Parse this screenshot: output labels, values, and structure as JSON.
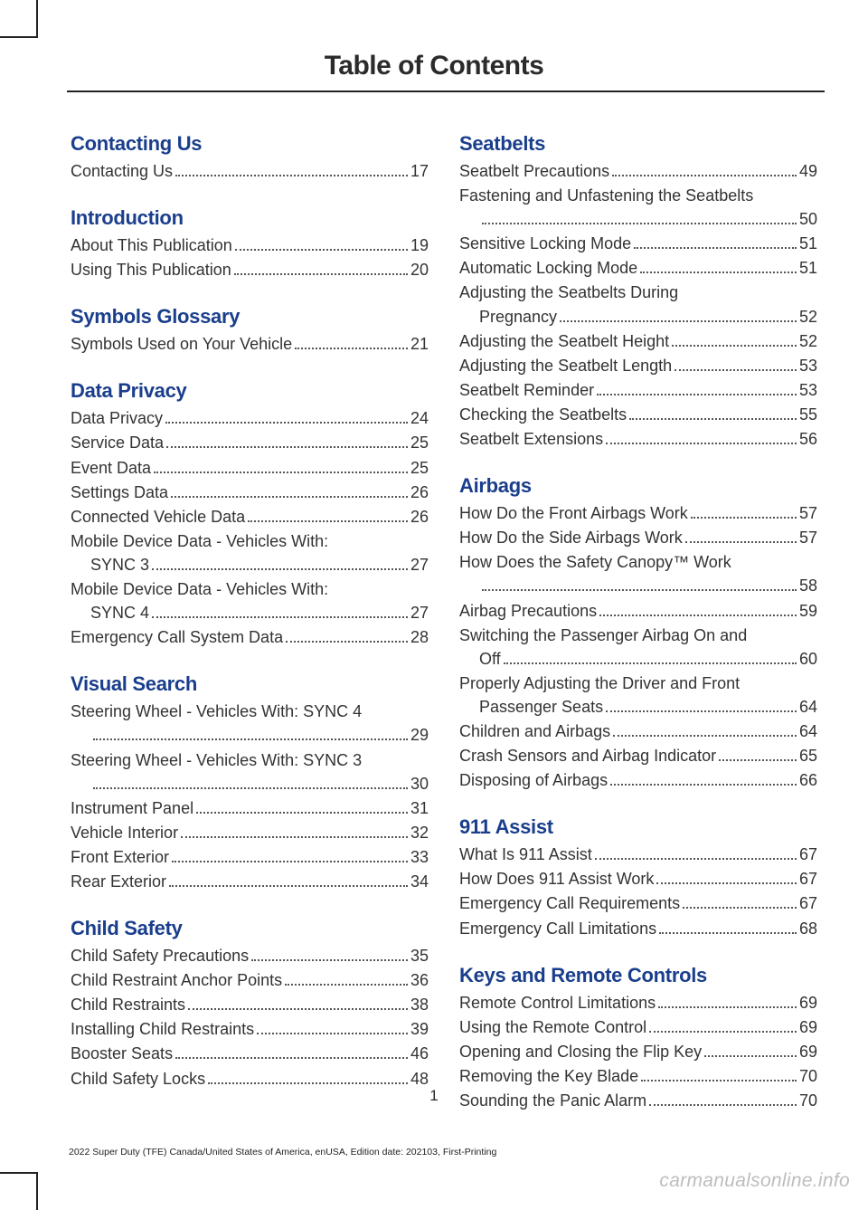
{
  "pageTitle": "Table of Contents",
  "pageNumber": "1",
  "footer": "2022 Super Duty (TFE) Canada/United States of America, enUSA, Edition date: 202103, First-Printing",
  "watermark": "carmanualsonline.info",
  "left": [
    {
      "head": "Contacting Us",
      "items": [
        {
          "label": "Contacting Us",
          "page": "17"
        }
      ]
    },
    {
      "head": "Introduction",
      "items": [
        {
          "label": "About This Publication",
          "page": "19"
        },
        {
          "label": "Using This Publication",
          "page": "20"
        }
      ]
    },
    {
      "head": "Symbols Glossary",
      "items": [
        {
          "label": "Symbols Used on Your Vehicle",
          "page": "21"
        }
      ]
    },
    {
      "head": "Data Privacy",
      "items": [
        {
          "label": "Data Privacy",
          "page": "24"
        },
        {
          "label": "Service Data",
          "page": "25"
        },
        {
          "label": "Event Data",
          "page": "25"
        },
        {
          "label": "Settings Data",
          "page": "26"
        },
        {
          "label": "Connected Vehicle Data",
          "page": "26"
        },
        {
          "label": "Mobile Device Data - Vehicles With:",
          "cont": "SYNC 3",
          "page": "27"
        },
        {
          "label": "Mobile Device Data - Vehicles With:",
          "cont": "SYNC 4",
          "page": "27"
        },
        {
          "label": "Emergency Call System Data",
          "page": "28"
        }
      ]
    },
    {
      "head": "Visual Search",
      "items": [
        {
          "label": "Steering Wheel - Vehicles With: SYNC 4",
          "cont": "",
          "page": "29"
        },
        {
          "label": "Steering Wheel - Vehicles With: SYNC 3",
          "cont": "",
          "page": "30"
        },
        {
          "label": "Instrument Panel",
          "page": "31"
        },
        {
          "label": "Vehicle Interior",
          "page": "32"
        },
        {
          "label": "Front Exterior",
          "page": "33"
        },
        {
          "label": "Rear Exterior",
          "page": "34"
        }
      ]
    },
    {
      "head": "Child Safety",
      "items": [
        {
          "label": "Child Safety Precautions",
          "page": "35"
        },
        {
          "label": "Child Restraint Anchor Points",
          "page": "36"
        },
        {
          "label": "Child Restraints",
          "page": "38"
        },
        {
          "label": "Installing Child Restraints",
          "page": "39"
        },
        {
          "label": "Booster Seats",
          "page": "46"
        },
        {
          "label": "Child Safety Locks",
          "page": "48"
        }
      ]
    }
  ],
  "right": [
    {
      "head": "Seatbelts",
      "items": [
        {
          "label": "Seatbelt Precautions",
          "page": "49"
        },
        {
          "label": "Fastening and Unfastening the Seatbelts",
          "cont": "",
          "page": "50"
        },
        {
          "label": "Sensitive Locking Mode",
          "page": "51"
        },
        {
          "label": "Automatic Locking Mode",
          "page": "51"
        },
        {
          "label": "Adjusting the Seatbelts During",
          "cont": "Pregnancy",
          "page": "52"
        },
        {
          "label": "Adjusting the Seatbelt Height",
          "page": "52"
        },
        {
          "label": "Adjusting the Seatbelt Length",
          "page": "53"
        },
        {
          "label": "Seatbelt Reminder",
          "page": "53"
        },
        {
          "label": "Checking the Seatbelts",
          "page": "55"
        },
        {
          "label": "Seatbelt Extensions",
          "page": "56"
        }
      ]
    },
    {
      "head": "Airbags",
      "items": [
        {
          "label": "How Do the Front Airbags Work",
          "page": "57"
        },
        {
          "label": "How Do the Side Airbags Work",
          "page": "57"
        },
        {
          "label": "How Does the Safety Canopy™ Work",
          "cont": "",
          "page": "58"
        },
        {
          "label": "Airbag Precautions",
          "page": "59"
        },
        {
          "label": "Switching the Passenger Airbag On and",
          "cont": "Off",
          "page": "60"
        },
        {
          "label": "Properly Adjusting the Driver and Front",
          "cont": "Passenger Seats",
          "page": "64"
        },
        {
          "label": "Children and Airbags",
          "page": "64"
        },
        {
          "label": "Crash Sensors and Airbag Indicator",
          "page": "65"
        },
        {
          "label": "Disposing of Airbags",
          "page": "66"
        }
      ]
    },
    {
      "head": "911 Assist",
      "items": [
        {
          "label": "What Is 911 Assist",
          "page": "67"
        },
        {
          "label": "How Does 911 Assist Work",
          "page": "67"
        },
        {
          "label": "Emergency Call Requirements",
          "page": "67"
        },
        {
          "label": "Emergency Call Limitations",
          "page": "68"
        }
      ]
    },
    {
      "head": "Keys and Remote Controls",
      "items": [
        {
          "label": "Remote Control Limitations",
          "page": "69"
        },
        {
          "label": "Using the Remote Control",
          "page": "69"
        },
        {
          "label": "Opening and Closing the Flip Key",
          "page": "69"
        },
        {
          "label": "Removing the Key Blade",
          "page": "70"
        },
        {
          "label": "Sounding the Panic Alarm",
          "page": "70"
        }
      ]
    }
  ]
}
